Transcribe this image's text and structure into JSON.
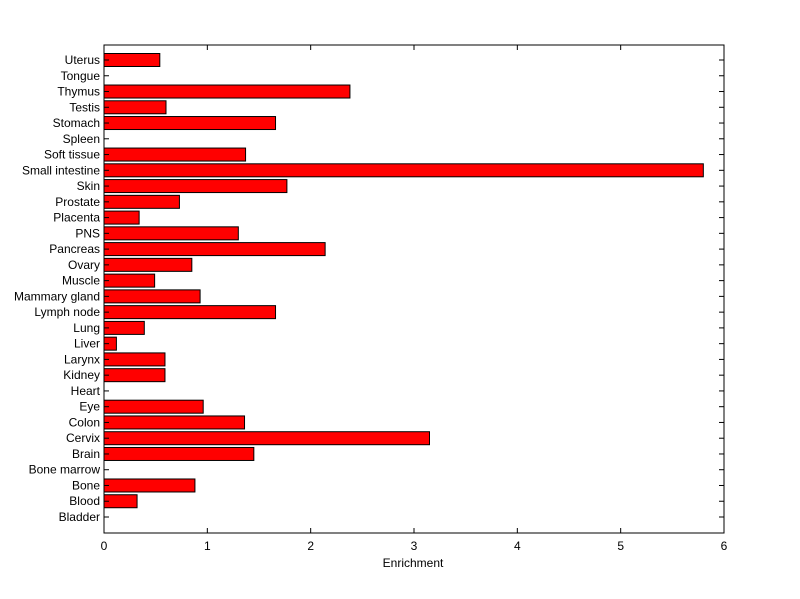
{
  "chart_data": {
    "type": "bar",
    "orientation": "horizontal",
    "categories": [
      "Bladder",
      "Blood",
      "Bone",
      "Bone marrow",
      "Brain",
      "Cervix",
      "Colon",
      "Eye",
      "Heart",
      "Kidney",
      "Larynx",
      "Liver",
      "Lung",
      "Lymph node",
      "Mammary gland",
      "Muscle",
      "Ovary",
      "Pancreas",
      "PNS",
      "Placenta",
      "Prostate",
      "Skin",
      "Small intestine",
      "Soft tissue",
      "Spleen",
      "Stomach",
      "Testis",
      "Thymus",
      "Tongue",
      "Uterus"
    ],
    "values": [
      0,
      0.32,
      0.88,
      0,
      1.45,
      3.15,
      1.36,
      0.96,
      0,
      0.59,
      0.59,
      0.12,
      0.39,
      1.66,
      0.93,
      0.49,
      0.85,
      2.14,
      1.3,
      0.34,
      0.73,
      1.77,
      5.8,
      1.37,
      0,
      1.66,
      0.6,
      2.38,
      0,
      0.54
    ],
    "xlabel": "Enrichment",
    "ylabel": "",
    "title": "",
    "xlim": [
      0,
      6
    ],
    "xticks": [
      "0",
      "1",
      "2",
      "3",
      "4",
      "5",
      "6"
    ],
    "grid": false,
    "bar_color": "#ff0000",
    "bar_edge_color": "#000000"
  }
}
